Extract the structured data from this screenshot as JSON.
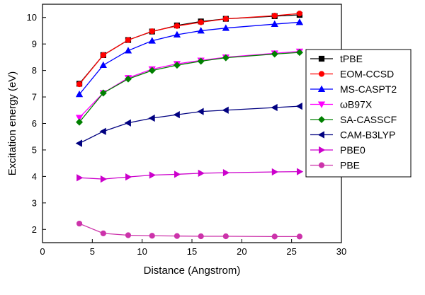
{
  "chart_data": {
    "type": "line",
    "title": "",
    "xlabel": "Distance (Angstrom)",
    "ylabel": "Excitation energy (eV)",
    "xlim": [
      0,
      30
    ],
    "ylim": [
      1.5,
      10.5
    ],
    "xticks": [
      0,
      5,
      10,
      15,
      20,
      25,
      30
    ],
    "yticks": [
      2,
      3,
      4,
      5,
      6,
      7,
      8,
      9,
      10
    ],
    "grid": false,
    "legend_position": "right",
    "x": [
      3.7,
      6.1,
      8.6,
      11.0,
      13.5,
      15.9,
      18.4,
      23.3,
      25.8
    ],
    "series": [
      {
        "name": "tPBE",
        "color": "#000000",
        "marker": "square",
        "values": [
          7.5,
          8.58,
          9.15,
          9.47,
          9.7,
          9.85,
          9.95,
          10.05,
          10.1
        ]
      },
      {
        "name": "EOM-CCSD",
        "color": "#ff0000",
        "marker": "circle",
        "values": [
          7.48,
          8.58,
          9.15,
          9.48,
          9.68,
          9.82,
          9.95,
          10.07,
          10.15
        ]
      },
      {
        "name": "MS-CASPT2",
        "color": "#0000ff",
        "marker": "triangle-up",
        "values": [
          7.1,
          8.2,
          8.75,
          9.12,
          9.35,
          9.5,
          9.6,
          9.75,
          9.82
        ]
      },
      {
        "name": "ωB97X",
        "color": "#ff00ff",
        "marker": "triangle-down",
        "values": [
          6.22,
          7.15,
          7.72,
          8.05,
          8.25,
          8.38,
          8.5,
          8.65,
          8.72
        ]
      },
      {
        "name": "SA-CASSCF",
        "color": "#008000",
        "marker": "diamond",
        "values": [
          6.05,
          7.15,
          7.68,
          8.0,
          8.2,
          8.35,
          8.48,
          8.62,
          8.68
        ]
      },
      {
        "name": "CAM-B3LYP",
        "color": "#000080",
        "marker": "triangle-left",
        "values": [
          5.25,
          5.7,
          6.02,
          6.2,
          6.33,
          6.45,
          6.5,
          6.6,
          6.65
        ]
      },
      {
        "name": "PBE0",
        "color": "#cc00cc",
        "marker": "triangle-right",
        "values": [
          3.95,
          3.9,
          3.98,
          4.05,
          4.08,
          4.12,
          4.14,
          4.17,
          4.18
        ]
      },
      {
        "name": "PBE",
        "color": "#cc33aa",
        "marker": "circle",
        "values": [
          2.22,
          1.85,
          1.78,
          1.76,
          1.75,
          1.74,
          1.74,
          1.73,
          1.73
        ]
      }
    ]
  }
}
